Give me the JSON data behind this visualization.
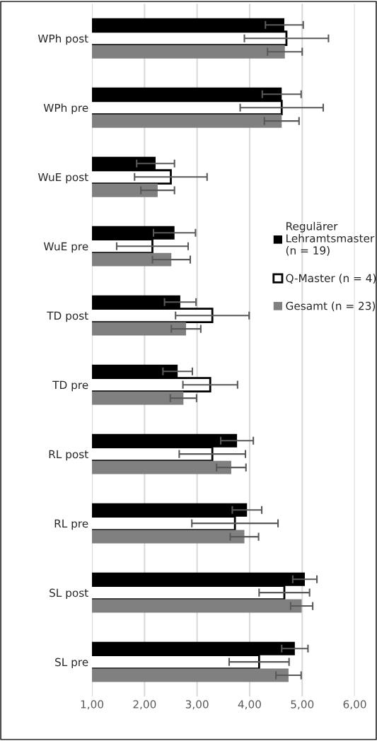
{
  "chart_data": {
    "type": "bar",
    "orientation": "horizontal",
    "categories": [
      "WPh post",
      "WPh pre",
      "WuE post",
      "WuE pre",
      "TD post",
      "TD pre",
      "RL post",
      "RL pre",
      "SL post",
      "SL pre"
    ],
    "series": [
      {
        "name": "Regulärer\nLehramtsmaster\n(n = 19)",
        "color": "#000000",
        "values": [
          4.66,
          4.61,
          2.21,
          2.57,
          2.68,
          2.63,
          3.76,
          3.95,
          5.05,
          4.86
        ],
        "errors": [
          0.36,
          0.37,
          0.36,
          0.4,
          0.3,
          0.28,
          0.31,
          0.28,
          0.23,
          0.25
        ]
      },
      {
        "name": "Q-Master (n = 4)",
        "color": "#ffffff",
        "values": [
          4.7,
          4.61,
          2.5,
          2.15,
          3.29,
          3.25,
          3.29,
          3.72,
          4.66,
          4.18
        ],
        "errors": [
          0.8,
          0.79,
          0.69,
          0.68,
          0.7,
          0.52,
          0.63,
          0.82,
          0.48,
          0.57
        ]
      },
      {
        "name": "Gesamt (n = 23)",
        "color": "#808080",
        "values": [
          4.67,
          4.61,
          2.25,
          2.51,
          2.79,
          2.74,
          3.65,
          3.9,
          4.99,
          4.74
        ],
        "errors": [
          0.33,
          0.33,
          0.32,
          0.36,
          0.28,
          0.25,
          0.28,
          0.27,
          0.21,
          0.24
        ]
      }
    ],
    "xlim": [
      1,
      6
    ],
    "xticks": [
      {
        "value": 1,
        "label": "1,00"
      },
      {
        "value": 2,
        "label": "2,00"
      },
      {
        "value": 3,
        "label": "3,00"
      },
      {
        "value": 4,
        "label": "4,00"
      },
      {
        "value": 5,
        "label": "5,00"
      },
      {
        "value": 6,
        "label": "6,00"
      }
    ],
    "grid": "x",
    "legend": "right"
  }
}
